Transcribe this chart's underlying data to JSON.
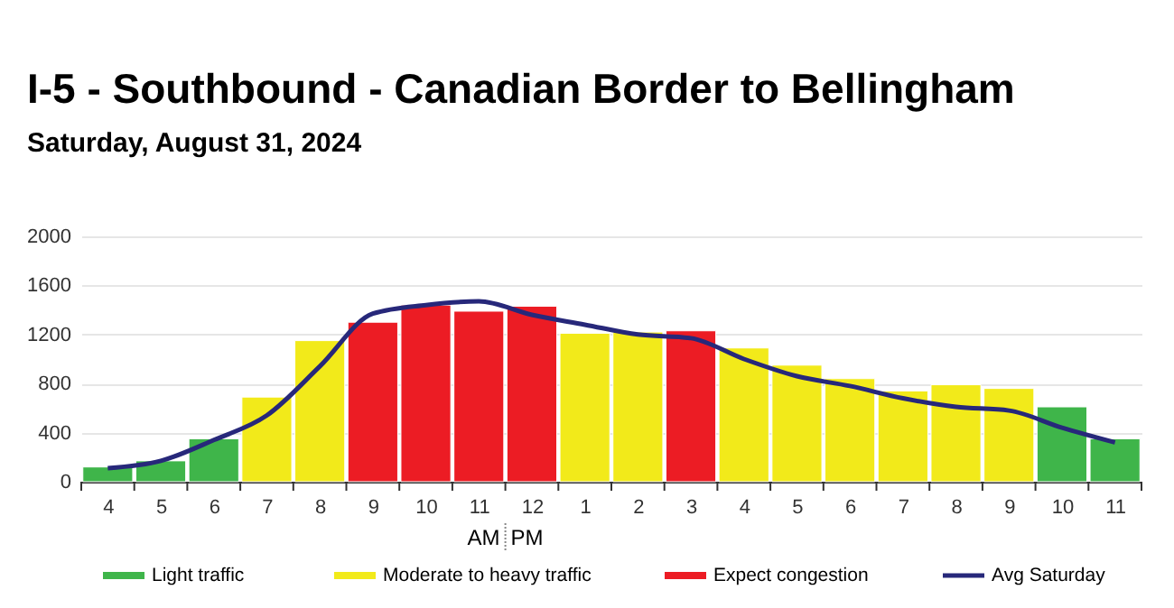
{
  "chart_data": {
    "type": "bar",
    "title": "I-5 - Southbound - Canadian Border to Bellingham",
    "subtitle": "Saturday, August 31, 2024",
    "categories": [
      "4",
      "5",
      "6",
      "7",
      "8",
      "9",
      "10",
      "11",
      "12",
      "1",
      "2",
      "3",
      "4",
      "5",
      "6",
      "7",
      "8",
      "9",
      "10",
      "11"
    ],
    "series": [
      {
        "name": "Light traffic",
        "color": "#3fb54a",
        "values": [
          120,
          170,
          350,
          null,
          null,
          null,
          null,
          null,
          null,
          null,
          null,
          null,
          null,
          null,
          null,
          null,
          null,
          null,
          610,
          350
        ]
      },
      {
        "name": "Moderate to heavy traffic",
        "color": "#f2ea1a",
        "values": [
          null,
          null,
          null,
          690,
          1150,
          null,
          null,
          null,
          null,
          1210,
          1220,
          null,
          1090,
          950,
          840,
          740,
          790,
          760,
          null,
          null
        ]
      },
      {
        "name": "Expect congestion",
        "color": "#ec1c24",
        "values": [
          null,
          null,
          null,
          null,
          null,
          1300,
          1440,
          1390,
          1430,
          null,
          null,
          1230,
          null,
          null,
          null,
          null,
          null,
          null,
          null,
          null
        ]
      },
      {
        "name": "Avg Saturday",
        "type": "line",
        "color": "#27287a",
        "values": [
          110,
          170,
          340,
          540,
          940,
          1370,
          1440,
          1470,
          1360,
          1280,
          1200,
          1170,
          1000,
          860,
          780,
          680,
          610,
          580,
          440,
          320
        ]
      }
    ],
    "annotations": [
      "AM",
      "PM"
    ],
    "ylim": [
      0,
      2000
    ],
    "yticks": [
      0,
      400,
      800,
      1200,
      1600,
      2000
    ],
    "grid": "y",
    "legend": "bottom",
    "marker": "none",
    "line_style": "solid"
  }
}
